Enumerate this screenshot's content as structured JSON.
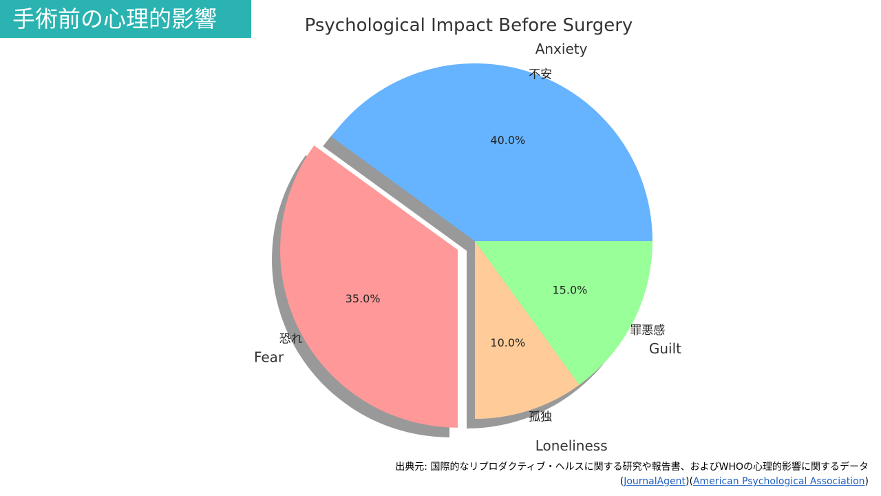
{
  "slide": {
    "heading": "手術前の心理的影響"
  },
  "chart_data": {
    "type": "pie",
    "title": "Psychological Impact Before Surgery",
    "slices": [
      {
        "label": "Anxiety",
        "sublabel": "不安",
        "value": 40.0,
        "pct_text": "40.0%",
        "color": "#66b3ff",
        "explode": 0
      },
      {
        "label": "Fear",
        "sublabel": "恐れ",
        "value": 35.0,
        "pct_text": "35.0%",
        "color": "#ff9999",
        "explode": 1
      },
      {
        "label": "Loneliness",
        "sublabel": "孤独",
        "value": 10.0,
        "pct_text": "10.0%",
        "color": "#ffcc99",
        "explode": 0
      },
      {
        "label": "Guilt",
        "sublabel": "罪悪感",
        "value": 15.0,
        "pct_text": "15.0%",
        "color": "#99ff99",
        "explode": 0
      }
    ],
    "shadow": true,
    "start_angle_deg": 0
  },
  "source": {
    "prefix": "出典元: 国際的なリプロダクティブ・ヘルスに関する研究や報告書、およびWHOの心理的影響に関するデータ",
    "open1": "(",
    "link1": "JournalAgent",
    "mid": ")(",
    "link2": "American Psychological Association",
    "close": ")"
  }
}
